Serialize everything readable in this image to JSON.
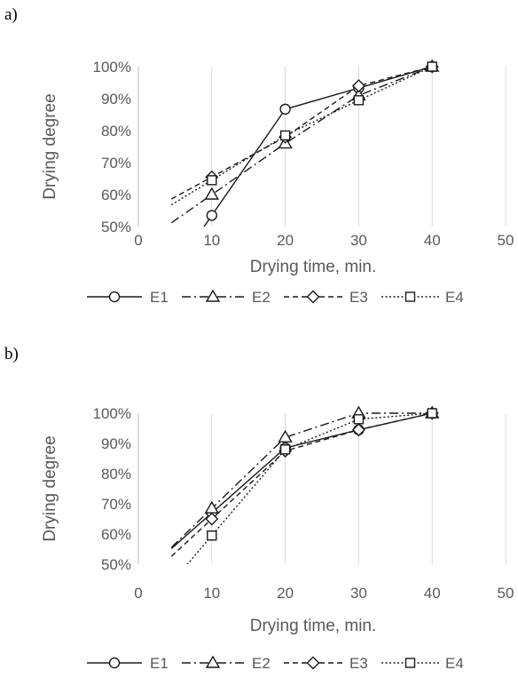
{
  "chart_data": [
    {
      "panel_label": "a)",
      "type": "line",
      "xlabel": "Drying time, min.",
      "ylabel": "Drying degree",
      "xlim": [
        0,
        50
      ],
      "ylim": [
        50,
        100
      ],
      "xticks": [
        "0",
        "10",
        "20",
        "30",
        "40",
        "50"
      ],
      "yticks": [
        "50%",
        "60%",
        "70%",
        "80%",
        "90%",
        "100%"
      ],
      "grid": "vertical",
      "legend": "bottom",
      "series": [
        {
          "name": "E1",
          "marker": "circle",
          "dash": "solid",
          "x": [
            10,
            20,
            30,
            40
          ],
          "y": [
            53.5,
            86.7,
            93.3,
            100
          ]
        },
        {
          "name": "E2",
          "marker": "triangle",
          "dash": "long-dash-dot",
          "x": [
            10,
            20,
            30,
            40
          ],
          "y": [
            60,
            76,
            91,
            100
          ]
        },
        {
          "name": "E3",
          "marker": "diamond",
          "dash": "dash",
          "x": [
            10,
            20,
            30,
            40
          ],
          "y": [
            65.5,
            78,
            94,
            100
          ]
        },
        {
          "name": "E4",
          "marker": "square",
          "dash": "dot",
          "x": [
            10,
            20,
            30,
            40
          ],
          "y": [
            64.5,
            78.5,
            89.5,
            100
          ]
        }
      ]
    },
    {
      "panel_label": "b)",
      "type": "line",
      "xlabel": "Drying time, min.",
      "ylabel": "Drying degree",
      "xlim": [
        0,
        50
      ],
      "ylim": [
        50,
        100
      ],
      "xticks": [
        "0",
        "10",
        "20",
        "30",
        "40",
        "50"
      ],
      "yticks": [
        "50%",
        "60%",
        "70%",
        "80%",
        "90%",
        "100%"
      ],
      "grid": "vertical",
      "legend": "bottom",
      "series": [
        {
          "name": "E1",
          "marker": "circle",
          "dash": "solid",
          "x": [
            10,
            20,
            30,
            40
          ],
          "y": [
            67,
            88.5,
            94.5,
            100
          ]
        },
        {
          "name": "E2",
          "marker": "triangle",
          "dash": "long-dash-dot",
          "x": [
            10,
            20,
            30,
            40
          ],
          "y": [
            68.5,
            92,
            100,
            100
          ]
        },
        {
          "name": "E3",
          "marker": "diamond",
          "dash": "dash",
          "x": [
            10,
            20,
            30,
            40
          ],
          "y": [
            65,
            87.5,
            94.5,
            100
          ]
        },
        {
          "name": "E4",
          "marker": "square",
          "dash": "dot",
          "x": [
            10,
            20,
            30,
            40
          ],
          "y": [
            59.5,
            88,
            98,
            100
          ]
        }
      ]
    }
  ]
}
